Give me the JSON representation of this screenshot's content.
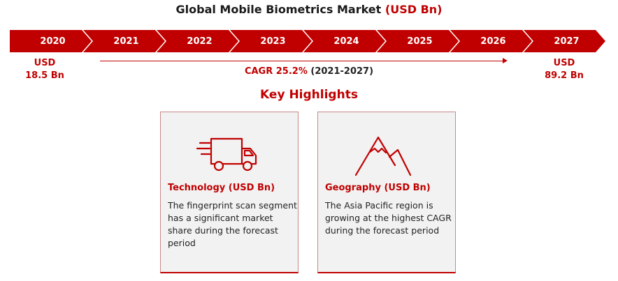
{
  "title": {
    "main": "Global Mobile Biometrics Market",
    "unit": "(USD Bn)"
  },
  "timeline": {
    "years": [
      "2020",
      "2021",
      "2022",
      "2023",
      "2024",
      "2025",
      "2026",
      "2027"
    ]
  },
  "start_value": {
    "line1": "USD",
    "line2": "18.5 Bn"
  },
  "end_value": {
    "line1": "USD",
    "line2": "89.2 Bn"
  },
  "cagr": {
    "rate": "CAGR 25.2%",
    "period": "(2021-2027)"
  },
  "highlights": {
    "heading": "Key Highlights",
    "cards": [
      {
        "icon": "delivery-truck-icon",
        "title": "Technology (USD Bn)",
        "body": "The fingerprint scan segment has a significant market share during the forecast period"
      },
      {
        "icon": "mountain-icon",
        "title": "Geography (USD Bn)",
        "body": "The Asia Pacific region is growing at the highest CAGR during the forecast period"
      }
    ]
  },
  "colors": {
    "accent": "#c00000",
    "card_bg": "#f2f2f2"
  }
}
